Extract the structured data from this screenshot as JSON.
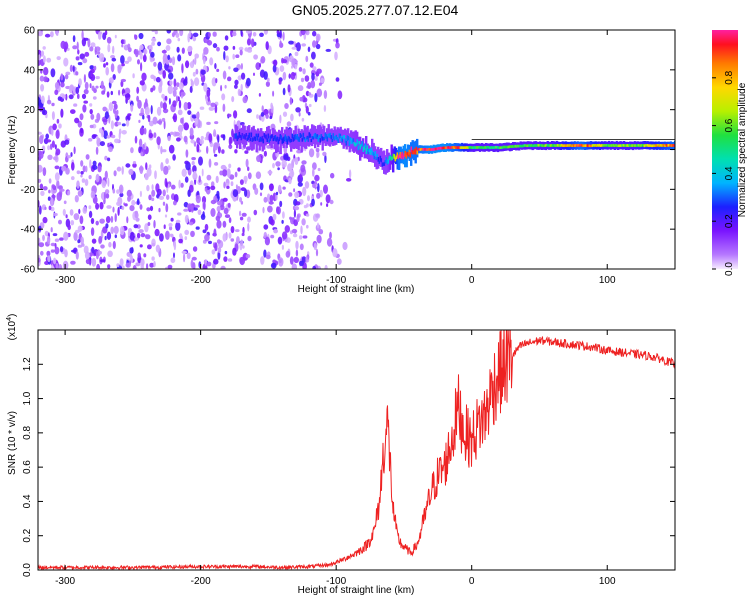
{
  "title": "GN05.2025.277.07.12.E04",
  "colors": {
    "snr_line": "#ee2222",
    "frame": "#000000",
    "background": "#ffffff",
    "spectrogram_lo": "#7a14ff",
    "spectrogram_hi": "#ff0000"
  },
  "chart_data": [
    {
      "type": "heatmap",
      "name": "spectrogram",
      "xlabel": "Height of straight line (km)",
      "ylabel": "Frequency (Hz)",
      "xlim": [
        -320,
        150
      ],
      "ylim": [
        -60,
        60
      ],
      "xticks": [
        -300,
        -200,
        -100,
        0,
        100
      ],
      "xtick_labels": [
        "-300",
        "-200",
        "-100",
        "0",
        "100"
      ],
      "yticks": [
        -60,
        -40,
        -20,
        0,
        20,
        40,
        60
      ],
      "ytick_labels": [
        "-60",
        "-40",
        "-20",
        "0",
        "20",
        "40",
        "60"
      ],
      "ridge": {
        "x": [
          -175,
          -160,
          -140,
          -120,
          -100,
          -90,
          -80,
          -70,
          -65,
          -60,
          -55,
          -50,
          -45,
          -40,
          -30,
          -20,
          -10,
          0,
          20,
          40,
          60,
          80,
          100,
          120,
          150
        ],
        "frequency": [
          7,
          6,
          5,
          6,
          6,
          4,
          1,
          -4,
          -8,
          -4,
          -4,
          -3,
          -1,
          0,
          0,
          1,
          1,
          1,
          1,
          2,
          2,
          2,
          2,
          2,
          2
        ],
        "amplitude": [
          0.25,
          0.25,
          0.28,
          0.3,
          0.3,
          0.35,
          0.4,
          0.3,
          0.28,
          0.45,
          0.9,
          0.95,
          0.9,
          0.9,
          0.95,
          0.95,
          0.85,
          0.55,
          0.55,
          0.55,
          0.6,
          0.9,
          0.6,
          0.6,
          0.9
        ]
      },
      "noise_region_x": [
        -320,
        -110
      ],
      "colorbar": {
        "label": "Normalized spectral amplitude",
        "range": [
          0,
          1
        ],
        "ticks": [
          0.0,
          0.2,
          0.4,
          0.6,
          0.8
        ],
        "tick_labels": [
          "0.0",
          "0.2",
          "0.4",
          "0.6",
          "0.8"
        ]
      }
    },
    {
      "type": "line",
      "name": "snr",
      "xlabel": "Height of straight line (km)",
      "ylabel": "SNR (10 * v/v)",
      "multiplier": "(x10",
      "multiplier_exp": "4",
      "multiplier_close": ")",
      "xlim": [
        -320,
        150
      ],
      "ylim": [
        0,
        1.4
      ],
      "xticks": [
        -300,
        -200,
        -100,
        0,
        100
      ],
      "xtick_labels": [
        "-300",
        "-200",
        "-100",
        "0",
        "100"
      ],
      "yticks": [
        0.0,
        0.2,
        0.4,
        0.6,
        0.8,
        1.0,
        1.2
      ],
      "ytick_labels": [
        "0.0",
        "0.2",
        "0.4",
        "0.6",
        "0.8",
        "1.0",
        "1.2"
      ],
      "series": [
        {
          "name": "SNR",
          "x": [
            -320,
            -250,
            -200,
            -160,
            -140,
            -120,
            -105,
            -95,
            -85,
            -78,
            -72,
            -68,
            -65,
            -62,
            -58,
            -55,
            -52,
            -48,
            -45,
            -40,
            -35,
            -30,
            -25,
            -20,
            -15,
            -10,
            -5,
            0,
            5,
            10,
            15,
            20,
            25,
            30,
            35,
            40,
            50,
            60,
            70,
            80,
            90,
            100,
            110,
            120,
            130,
            140,
            150
          ],
          "y": [
            0.015,
            0.015,
            0.02,
            0.02,
            0.015,
            0.02,
            0.03,
            0.06,
            0.1,
            0.14,
            0.22,
            0.4,
            0.7,
            0.85,
            0.35,
            0.2,
            0.15,
            0.12,
            0.1,
            0.15,
            0.3,
            0.45,
            0.55,
            0.6,
            0.75,
            0.95,
            0.8,
            0.75,
            0.85,
            0.9,
            1.05,
            1.15,
            1.2,
            1.25,
            1.3,
            1.32,
            1.34,
            1.33,
            1.32,
            1.31,
            1.3,
            1.28,
            1.27,
            1.26,
            1.25,
            1.23,
            1.2
          ]
        }
      ]
    }
  ]
}
